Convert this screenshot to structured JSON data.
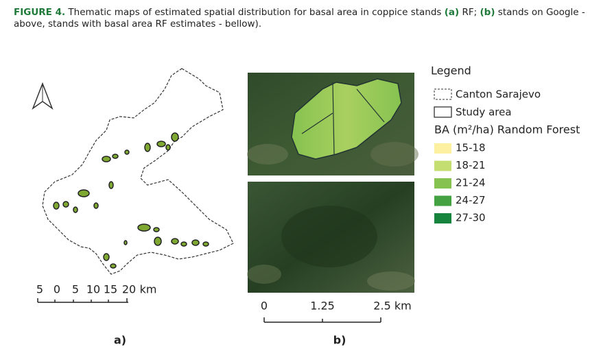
{
  "caption": {
    "parts": [
      "FIGURE 4.",
      " Thematic maps of estimated spatial distribution for basal area in coppice stands ",
      "(a)",
      " RF; ",
      "(b)",
      " stands on Google - above, stands with basal area RF estimates - bellow)."
    ]
  },
  "panel_a": {
    "label": "a)",
    "scale_labels": [
      "5",
      "0",
      "5",
      "10",
      "15",
      "20",
      "km"
    ]
  },
  "panel_b": {
    "label": "b)",
    "scale_labels": [
      "0",
      "1.25",
      "2.5 km"
    ]
  },
  "legend": {
    "title": "Legend",
    "boundaries": [
      "Canton Sarajevo",
      "Study area"
    ],
    "heading": "BA (m²/ha) Random Forest",
    "classes": [
      {
        "name": "15-18",
        "color": "#fdf0a0"
      },
      {
        "name": "18-21",
        "color": "#c4de72"
      },
      {
        "name": "21-24",
        "color": "#86c250"
      },
      {
        "name": "24-27",
        "color": "#45a242"
      },
      {
        "name": "27-30",
        "color": "#16843c"
      }
    ]
  }
}
